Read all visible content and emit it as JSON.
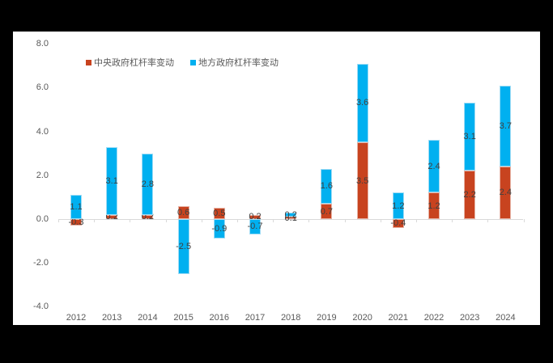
{
  "chart_data": {
    "type": "bar",
    "stacked": true,
    "title": "",
    "xlabel": "",
    "ylabel": "",
    "ylim": [
      -4.0,
      8.0
    ],
    "yticks": [
      "8.0",
      "6.0",
      "4.0",
      "2.0",
      "0.0",
      "-2.0",
      "-4.0"
    ],
    "ytick_values": [
      8,
      6,
      4,
      2,
      0,
      -2,
      -4
    ],
    "grid": false,
    "legend_position": "top-left inside",
    "categories": [
      "2012",
      "2013",
      "2014",
      "2015",
      "2016",
      "2017",
      "2018",
      "2019",
      "2020",
      "2021",
      "2022",
      "2023",
      "2024"
    ],
    "series": [
      {
        "name": "中央政府杠杆率变动",
        "color": "#c8431f",
        "values": [
          -0.3,
          0.2,
          0.2,
          0.6,
          0.5,
          0.2,
          0.1,
          0.7,
          3.5,
          -0.4,
          1.2,
          2.2,
          2.4
        ],
        "labels": [
          "-0.3",
          "0.2",
          "0.2",
          "0.6",
          "0.5",
          "0.2",
          "0.1",
          "0.7",
          "3.5",
          "-0.4",
          "1.2",
          "2.2",
          "2.4"
        ]
      },
      {
        "name": "地方政府杠杆率变动",
        "color": "#00b0f0",
        "values": [
          1.1,
          3.1,
          2.8,
          -2.5,
          -0.9,
          -0.7,
          0.2,
          1.6,
          3.6,
          1.2,
          2.4,
          3.1,
          3.7
        ],
        "labels": [
          "1.1",
          "3.1",
          "2.8",
          "-2.5",
          "-0.9",
          "-0.7",
          "0.2",
          "1.6",
          "3.6",
          "1.2",
          "2.4",
          "3.1",
          "3.7"
        ]
      }
    ]
  },
  "legend": {
    "items": [
      {
        "label": "中央政府杠杆率变动",
        "color": "#c8431f"
      },
      {
        "label": "地方政府杠杆率变动",
        "color": "#00b0f0"
      }
    ]
  }
}
